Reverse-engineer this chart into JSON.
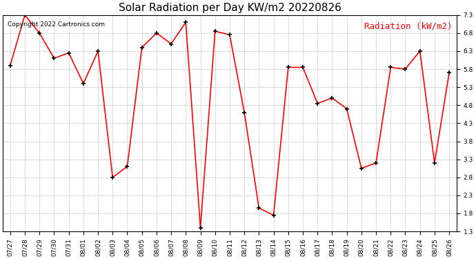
{
  "title": "Solar Radiation per Day KW/m2 20220826",
  "ylabel": "Radiation (kW/m2)",
  "copyright": "Copyright 2022 Cartronics.com",
  "dates": [
    "07/27",
    "07/28",
    "07/29",
    "07/30",
    "07/31",
    "08/01",
    "08/02",
    "08/03",
    "08/04",
    "08/05",
    "08/06",
    "08/07",
    "08/08",
    "08/09",
    "08/10",
    "08/11",
    "08/12",
    "08/13",
    "08/14",
    "08/15",
    "08/16",
    "08/17",
    "08/18",
    "08/19",
    "08/20",
    "08/21",
    "08/22",
    "08/23",
    "08/24",
    "08/25",
    "08/26"
  ],
  "values": [
    5.9,
    7.3,
    6.8,
    6.1,
    6.25,
    5.4,
    6.3,
    2.8,
    3.1,
    6.4,
    6.8,
    6.5,
    7.1,
    1.4,
    6.85,
    6.75,
    4.6,
    1.95,
    1.75,
    5.85,
    5.85,
    4.85,
    5.0,
    4.7,
    3.05,
    3.2,
    5.85,
    5.8,
    6.3,
    3.2,
    5.7
  ],
  "line_color": "#ff0000",
  "marker": "+",
  "marker_color": "#000000",
  "marker_size": 5,
  "marker_linewidth": 1.2,
  "line_width": 1.2,
  "background_color": "#ffffff",
  "grid_color": "#bbbbbb",
  "ylim": [
    1.3,
    7.3
  ],
  "yticks": [
    1.3,
    1.8,
    2.3,
    2.8,
    3.3,
    3.8,
    4.3,
    4.8,
    5.3,
    5.8,
    6.3,
    6.8,
    7.3
  ],
  "title_fontsize": 11,
  "ylabel_fontsize": 9,
  "copyright_fontsize": 6.5,
  "tick_fontsize": 6.5
}
